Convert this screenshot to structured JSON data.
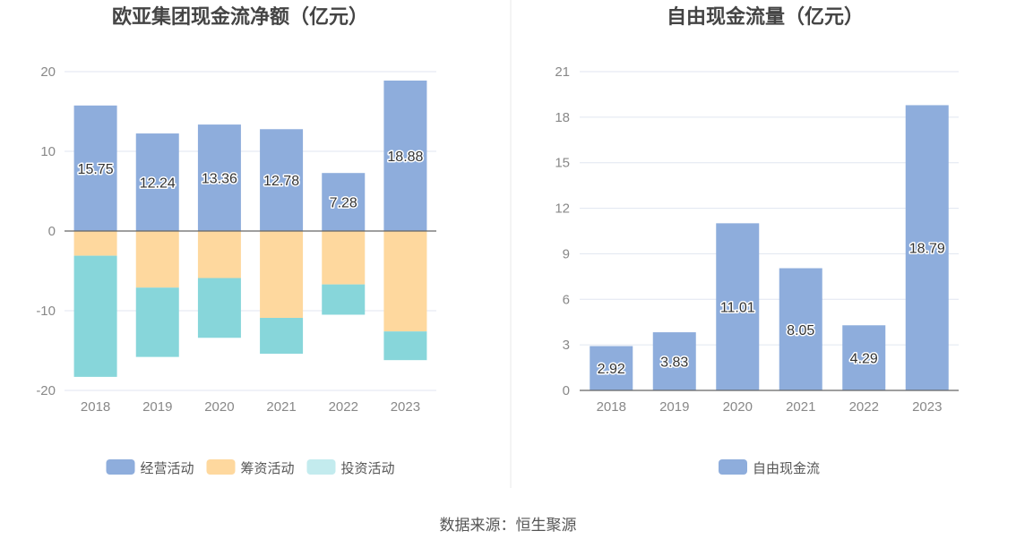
{
  "source_text": "数据来源：恒生聚源",
  "chart_data": [
    {
      "type": "bar",
      "stacked": true,
      "title": "欧亚集团现金流净额（亿元）",
      "categories": [
        "2018",
        "2019",
        "2020",
        "2021",
        "2022",
        "2023"
      ],
      "ylim": [
        -20,
        20
      ],
      "yticks": [
        20,
        10,
        0,
        -10,
        -20
      ],
      "grid": true,
      "legend_position": "bottom",
      "series": [
        {
          "name": "经营活动",
          "color": "#8eaddc",
          "values": [
            15.75,
            12.24,
            13.36,
            12.78,
            7.28,
            18.88
          ],
          "labels": [
            "15.75",
            "12.24",
            "13.36",
            "12.78",
            "7.28",
            "18.88"
          ]
        },
        {
          "name": "筹资活动",
          "color": "#fed89e",
          "values": [
            -3.1,
            -7.1,
            -5.9,
            -10.9,
            -6.7,
            -12.6
          ]
        },
        {
          "name": "投资活动",
          "color": "#87d6da",
          "legend_color": "#c3ebee",
          "values": [
            -15.2,
            -8.7,
            -7.5,
            -4.5,
            -3.8,
            -3.6
          ]
        }
      ]
    },
    {
      "type": "bar",
      "title": "自由现金流量（亿元）",
      "categories": [
        "2018",
        "2019",
        "2020",
        "2021",
        "2022",
        "2023"
      ],
      "ylim": [
        0,
        21
      ],
      "yticks": [
        21,
        18,
        15,
        12,
        9,
        6,
        3,
        0
      ],
      "grid": true,
      "legend_position": "bottom",
      "series": [
        {
          "name": "自由现金流",
          "color": "#8eaddc",
          "values": [
            2.92,
            3.83,
            11.01,
            8.05,
            4.29,
            18.79
          ],
          "labels": [
            "2.92",
            "3.83",
            "11.01",
            "8.05",
            "4.29",
            "18.79"
          ]
        }
      ]
    }
  ]
}
